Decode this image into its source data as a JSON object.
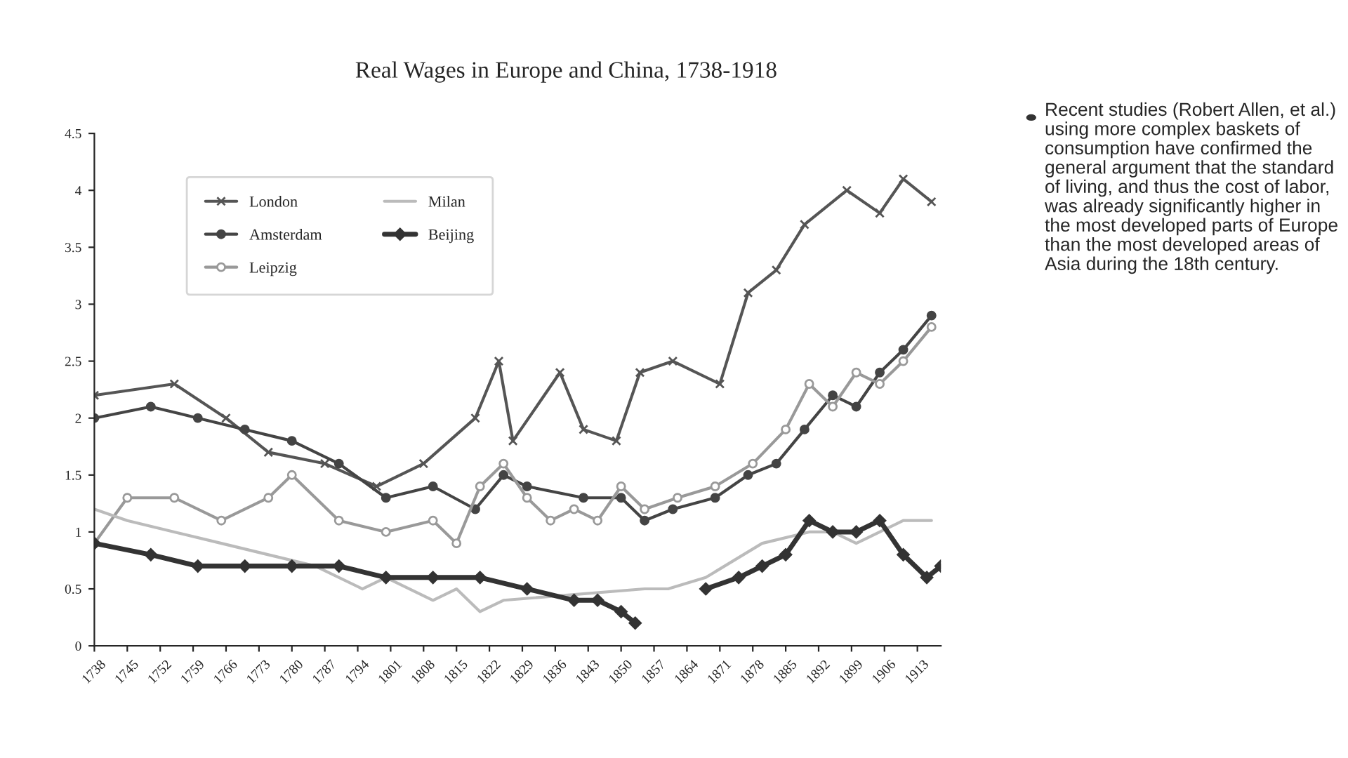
{
  "chart_data": {
    "type": "line",
    "title": "Real Wages in Europe and China, 1738-1918",
    "xlim": [
      1738,
      1918
    ],
    "xticks": [
      1738,
      1745,
      1752,
      1759,
      1766,
      1773,
      1780,
      1787,
      1794,
      1801,
      1808,
      1815,
      1822,
      1829,
      1836,
      1843,
      1850,
      1857,
      1864,
      1871,
      1878,
      1885,
      1892,
      1899,
      1906,
      1913
    ],
    "ylim": [
      0,
      4.5
    ],
    "yticks": [
      0,
      0.5,
      1,
      1.5,
      2,
      2.5,
      3,
      3.5,
      4,
      4.5
    ],
    "grid": false,
    "legend": "top left",
    "series": [
      {
        "name": "London",
        "color": "#555555",
        "marker": "cross",
        "x": [
          1738,
          1755,
          1766,
          1775,
          1787,
          1798,
          1808,
          1819,
          1824,
          1827,
          1837,
          1842,
          1849,
          1854,
          1861,
          1871,
          1877,
          1883,
          1889,
          1898,
          1905,
          1910,
          1916
        ],
        "values": [
          2.2,
          2.3,
          2.0,
          1.7,
          1.6,
          1.4,
          1.6,
          2.0,
          2.5,
          1.8,
          2.4,
          1.9,
          1.8,
          2.4,
          2.5,
          2.3,
          3.1,
          3.3,
          3.7,
          4.0,
          3.8,
          4.1,
          3.9
        ]
      },
      {
        "name": "Amsterdam",
        "color": "#444444",
        "marker": "circle",
        "x": [
          1738,
          1750,
          1760,
          1770,
          1780,
          1790,
          1800,
          1810,
          1819,
          1825,
          1830,
          1842,
          1850,
          1855,
          1861,
          1870,
          1877,
          1883,
          1889,
          1895,
          1900,
          1905,
          1910,
          1916
        ],
        "values": [
          2.0,
          2.1,
          2.0,
          1.9,
          1.8,
          1.6,
          1.3,
          1.4,
          1.2,
          1.5,
          1.4,
          1.3,
          1.3,
          1.1,
          1.2,
          1.3,
          1.5,
          1.6,
          1.9,
          2.2,
          2.1,
          2.4,
          2.6,
          2.9
        ]
      },
      {
        "name": "Leipzig",
        "color": "#999999",
        "marker": "circle_open",
        "x": [
          1738,
          1745,
          1755,
          1765,
          1775,
          1780,
          1790,
          1800,
          1810,
          1815,
          1820,
          1825,
          1830,
          1835,
          1840,
          1845,
          1850,
          1855,
          1862,
          1870,
          1878,
          1885,
          1890,
          1895,
          1900,
          1905,
          1910,
          1916
        ],
        "values": [
          0.9,
          1.3,
          1.3,
          1.1,
          1.3,
          1.5,
          1.1,
          1.0,
          1.1,
          0.9,
          1.4,
          1.6,
          1.3,
          1.1,
          1.2,
          1.1,
          1.4,
          1.2,
          1.3,
          1.4,
          1.6,
          1.9,
          2.3,
          2.1,
          2.4,
          2.3,
          2.5,
          2.8
        ]
      },
      {
        "name": "Milan",
        "color": "#bbbbbb",
        "marker": "none",
        "x": [
          1738,
          1745,
          1755,
          1765,
          1775,
          1785,
          1795,
          1800,
          1805,
          1810,
          1815,
          1820,
          1825,
          1855,
          1860,
          1868,
          1880,
          1890,
          1895,
          1900,
          1905,
          1910,
          1916
        ],
        "values": [
          1.2,
          1.1,
          1.0,
          0.9,
          0.8,
          0.7,
          0.5,
          0.6,
          0.5,
          0.4,
          0.5,
          0.3,
          0.4,
          0.5,
          0.5,
          0.6,
          0.9,
          1.0,
          1.0,
          0.9,
          1.0,
          1.1,
          1.1
        ]
      },
      {
        "name": "Beijing",
        "color": "#333333",
        "marker": "diamond",
        "x": [
          1738,
          1750,
          1760,
          1770,
          1780,
          1790,
          1800,
          1810,
          1820,
          1830,
          1840,
          1845,
          1850,
          1853,
          1860,
          1868,
          1875,
          1880,
          1885,
          1890,
          1895,
          1900,
          1905,
          1910,
          1915,
          1918
        ],
        "values": [
          0.9,
          0.8,
          0.7,
          0.7,
          0.7,
          0.7,
          0.6,
          0.6,
          0.6,
          0.5,
          0.4,
          0.4,
          0.3,
          0.2,
          null,
          0.5,
          0.6,
          0.7,
          0.8,
          1.1,
          1.0,
          1.0,
          1.1,
          0.8,
          0.6,
          0.7
        ]
      }
    ],
    "annotations": [
      "Recent studies (Robert Allen, et al.) using more complex baskets of consumption have confirmed the general argument that the standard of living, and thus the cost of labor, was already significantly higher in the most developed parts of Europe than the most developed areas of Asia during the 18th century."
    ]
  }
}
